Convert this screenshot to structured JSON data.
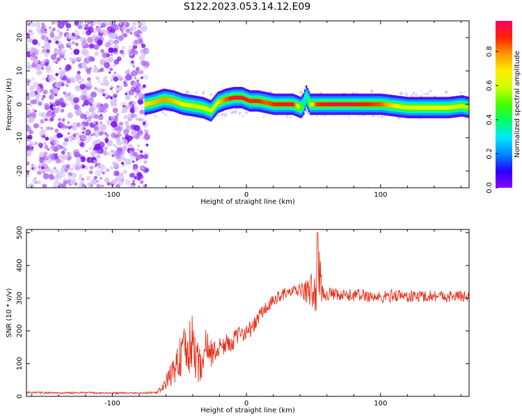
{
  "title": "S122.2023.053.14.12.E09",
  "colorbar": {
    "label": "Normalized spectral amplitude",
    "ticks": [
      "0.0",
      "0.2",
      "0.4",
      "0.6",
      "0.8"
    ],
    "tick_values": [
      0.0,
      0.2,
      0.4,
      0.6,
      0.8
    ],
    "stops": [
      "#8a00ff",
      "#2a00ff",
      "#0088ff",
      "#00e8ff",
      "#00ff66",
      "#44ff00",
      "#ccff00",
      "#ffee00",
      "#ff9900",
      "#ff2200",
      "#ff0066"
    ]
  },
  "chart_data": [
    {
      "type": "heatmap",
      "xlabel": "Height of straight line (km)",
      "ylabel": "Frequency (Hz)",
      "xlim": [
        -164,
        166
      ],
      "ylim": [
        -25,
        25
      ],
      "xticks": [
        -100,
        0,
        100
      ],
      "xtick_labels": [
        "-100",
        "0",
        "100"
      ],
      "yticks": [
        -20,
        -10,
        0,
        10,
        20
      ],
      "ytick_labels": [
        "-20",
        "-10",
        "0",
        "10",
        "20"
      ],
      "noise_region_x": [
        -164,
        -76
      ],
      "signal_trace": {
        "x": [
          -76,
          -70,
          -62,
          -55,
          -48,
          -40,
          -33,
          -27,
          -22,
          -16,
          -10,
          -4,
          2,
          8,
          14,
          20,
          28,
          34,
          40,
          42,
          44,
          47,
          52,
          60,
          70,
          80,
          90,
          100,
          110,
          120,
          130,
          140,
          150,
          160,
          166
        ],
        "y": [
          0,
          0.5,
          1.5,
          1,
          0,
          -0.5,
          -1,
          -2,
          0.5,
          1.5,
          2,
          2,
          1,
          1,
          0.5,
          0,
          0,
          0,
          -1,
          0,
          2.5,
          0,
          0,
          0,
          0,
          0,
          0,
          0,
          -0.5,
          -1,
          -1,
          -1,
          -1,
          -0.5,
          -1
        ],
        "amplitude": [
          0.7,
          0.75,
          0.8,
          0.75,
          0.7,
          0.6,
          0.6,
          0.65,
          0.7,
          0.85,
          0.95,
          0.95,
          0.9,
          0.9,
          0.85,
          0.9,
          0.95,
          0.95,
          0.5,
          0.4,
          0.3,
          0.6,
          0.9,
          0.95,
          0.95,
          0.95,
          0.9,
          0.85,
          0.7,
          0.6,
          0.65,
          0.65,
          0.65,
          0.6,
          0.55
        ]
      }
    },
    {
      "type": "line",
      "xlabel": "Height of straight line (km)",
      "ylabel": "SNR (10 * v/v)",
      "xlim": [
        -164,
        166
      ],
      "ylim": [
        0,
        510
      ],
      "xticks": [
        -100,
        0,
        100
      ],
      "xtick_labels": [
        "-100",
        "0",
        "100"
      ],
      "yticks": [
        0,
        100,
        200,
        300,
        400,
        500
      ],
      "ytick_labels": [
        "0",
        "100",
        "200",
        "300",
        "400",
        "500"
      ],
      "color": "#e8301a",
      "x": [
        -164,
        -140,
        -120,
        -100,
        -80,
        -68,
        -62,
        -58,
        -55,
        -50,
        -45,
        -40,
        -35,
        -30,
        -25,
        -20,
        -15,
        -10,
        -5,
        0,
        5,
        10,
        15,
        20,
        25,
        30,
        35,
        40,
        45,
        50,
        52,
        54,
        56,
        58,
        60,
        70,
        80,
        90,
        100,
        110,
        120,
        130,
        140,
        150,
        160,
        166
      ],
      "y": [
        12,
        10,
        11,
        10,
        10,
        11,
        25,
        60,
        70,
        120,
        130,
        160,
        90,
        150,
        130,
        150,
        160,
        170,
        190,
        200,
        210,
        250,
        270,
        290,
        310,
        315,
        320,
        325,
        320,
        325,
        300,
        410,
        320,
        310,
        315,
        305,
        310,
        308,
        300,
        310,
        305,
        306,
        308,
        305,
        307,
        305
      ],
      "spread": [
        3,
        3,
        3,
        3,
        3,
        3,
        15,
        30,
        40,
        70,
        90,
        90,
        60,
        60,
        40,
        30,
        30,
        30,
        25,
        25,
        25,
        25,
        22,
        20,
        20,
        18,
        18,
        18,
        40,
        60,
        60,
        90,
        40,
        25,
        20,
        20,
        20,
        20,
        20,
        20,
        20,
        18,
        18,
        18,
        18,
        18
      ]
    }
  ]
}
